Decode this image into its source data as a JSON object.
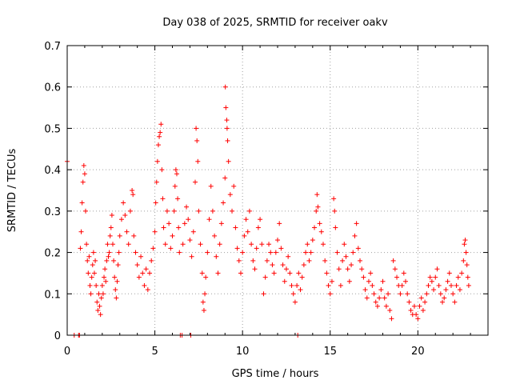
{
  "chart_data": {
    "type": "scatter",
    "title": "Day 038 of 2025, SRMTID for receiver oakv",
    "xlabel": "GPS time / hours",
    "ylabel": "SRMTID / TECUs",
    "xlim": [
      0,
      24
    ],
    "ylim": [
      0,
      0.7
    ],
    "x_ticks": [
      0,
      5,
      10,
      15,
      20
    ],
    "x_tick_labels": [
      "0",
      "5",
      "10",
      "15",
      "20"
    ],
    "y_ticks": [
      0,
      0.1,
      0.2,
      0.3,
      0.4,
      0.5,
      0.6,
      0.7
    ],
    "y_tick_labels": [
      "0",
      "0.1",
      "0.2",
      "0.3",
      "0.4",
      "0.5",
      "0.6",
      "0.7"
    ],
    "grid": true,
    "marker": "+",
    "marker_color": "#ff0000",
    "series": [
      {
        "name": "SRMTID",
        "points": [
          [
            0.0,
            0.42
          ],
          [
            0.4,
            0.0
          ],
          [
            0.65,
            0.0
          ],
          [
            0.7,
            0.0
          ],
          [
            0.75,
            0.21
          ],
          [
            0.8,
            0.25
          ],
          [
            0.85,
            0.32
          ],
          [
            0.9,
            0.37
          ],
          [
            0.95,
            0.41
          ],
          [
            1.0,
            0.39
          ],
          [
            1.05,
            0.3
          ],
          [
            1.1,
            0.22
          ],
          [
            1.15,
            0.18
          ],
          [
            1.2,
            0.15
          ],
          [
            1.25,
            0.19
          ],
          [
            1.3,
            0.12
          ],
          [
            1.35,
            0.1
          ],
          [
            1.4,
            0.14
          ],
          [
            1.45,
            0.17
          ],
          [
            1.5,
            0.2
          ],
          [
            1.55,
            0.15
          ],
          [
            1.6,
            0.18
          ],
          [
            1.65,
            0.12
          ],
          [
            1.7,
            0.08
          ],
          [
            1.75,
            0.06
          ],
          [
            1.8,
            0.1
          ],
          [
            1.85,
            0.07
          ],
          [
            1.9,
            0.05
          ],
          [
            1.95,
            0.09
          ],
          [
            2.0,
            0.12
          ],
          [
            2.05,
            0.1
          ],
          [
            2.1,
            0.14
          ],
          [
            2.15,
            0.16
          ],
          [
            2.2,
            0.13
          ],
          [
            2.25,
            0.18
          ],
          [
            2.3,
            0.22
          ],
          [
            2.35,
            0.19
          ],
          [
            2.4,
            0.2
          ],
          [
            2.45,
            0.24
          ],
          [
            2.5,
            0.26
          ],
          [
            2.55,
            0.29
          ],
          [
            2.6,
            0.22
          ],
          [
            2.65,
            0.18
          ],
          [
            2.7,
            0.14
          ],
          [
            2.75,
            0.11
          ],
          [
            2.8,
            0.09
          ],
          [
            2.85,
            0.13
          ],
          [
            2.9,
            0.17
          ],
          [
            2.95,
            0.2
          ],
          [
            3.0,
            0.24
          ],
          [
            3.1,
            0.28
          ],
          [
            3.2,
            0.32
          ],
          [
            3.3,
            0.29
          ],
          [
            3.4,
            0.25
          ],
          [
            3.5,
            0.22
          ],
          [
            3.6,
            0.3
          ],
          [
            3.7,
            0.35
          ],
          [
            3.75,
            0.34
          ],
          [
            3.8,
            0.24
          ],
          [
            3.9,
            0.2
          ],
          [
            4.0,
            0.17
          ],
          [
            4.1,
            0.14
          ],
          [
            4.2,
            0.19
          ],
          [
            4.3,
            0.15
          ],
          [
            4.4,
            0.12
          ],
          [
            4.5,
            0.16
          ],
          [
            4.6,
            0.11
          ],
          [
            4.7,
            0.15
          ],
          [
            4.8,
            0.18
          ],
          [
            4.9,
            0.21
          ],
          [
            5.0,
            0.25
          ],
          [
            5.05,
            0.32
          ],
          [
            5.1,
            0.37
          ],
          [
            5.15,
            0.42
          ],
          [
            5.2,
            0.46
          ],
          [
            5.25,
            0.48
          ],
          [
            5.3,
            0.49
          ],
          [
            5.35,
            0.51
          ],
          [
            5.4,
            0.4
          ],
          [
            5.45,
            0.33
          ],
          [
            5.5,
            0.26
          ],
          [
            5.6,
            0.22
          ],
          [
            5.7,
            0.3
          ],
          [
            5.8,
            0.27
          ],
          [
            5.9,
            0.21
          ],
          [
            6.0,
            0.24
          ],
          [
            6.1,
            0.3
          ],
          [
            6.15,
            0.36
          ],
          [
            6.2,
            0.4
          ],
          [
            6.25,
            0.39
          ],
          [
            6.3,
            0.33
          ],
          [
            6.35,
            0.26
          ],
          [
            6.4,
            0.2
          ],
          [
            6.45,
            0.0
          ],
          [
            6.55,
            0.0
          ],
          [
            6.6,
            0.22
          ],
          [
            6.7,
            0.27
          ],
          [
            6.8,
            0.31
          ],
          [
            6.9,
            0.28
          ],
          [
            7.0,
            0.23
          ],
          [
            7.05,
            0.0
          ],
          [
            7.1,
            0.19
          ],
          [
            7.2,
            0.25
          ],
          [
            7.3,
            0.37
          ],
          [
            7.35,
            0.5
          ],
          [
            7.4,
            0.47
          ],
          [
            7.45,
            0.42
          ],
          [
            7.5,
            0.3
          ],
          [
            7.6,
            0.22
          ],
          [
            7.7,
            0.15
          ],
          [
            7.75,
            0.08
          ],
          [
            7.8,
            0.06
          ],
          [
            7.85,
            0.1
          ],
          [
            7.9,
            0.14
          ],
          [
            8.0,
            0.2
          ],
          [
            8.1,
            0.28
          ],
          [
            8.2,
            0.36
          ],
          [
            8.3,
            0.3
          ],
          [
            8.4,
            0.24
          ],
          [
            8.5,
            0.19
          ],
          [
            8.6,
            0.15
          ],
          [
            8.7,
            0.22
          ],
          [
            8.8,
            0.27
          ],
          [
            8.9,
            0.32
          ],
          [
            9.0,
            0.38
          ],
          [
            9.02,
            0.6
          ],
          [
            9.05,
            0.55
          ],
          [
            9.1,
            0.52
          ],
          [
            9.12,
            0.5
          ],
          [
            9.15,
            0.47
          ],
          [
            9.2,
            0.42
          ],
          [
            9.3,
            0.34
          ],
          [
            9.4,
            0.3
          ],
          [
            9.5,
            0.36
          ],
          [
            9.6,
            0.26
          ],
          [
            9.7,
            0.21
          ],
          [
            9.8,
            0.18
          ],
          [
            9.9,
            0.15
          ],
          [
            10.0,
            0.2
          ],
          [
            10.1,
            0.24
          ],
          [
            10.2,
            0.28
          ],
          [
            10.3,
            0.25
          ],
          [
            10.4,
            0.3
          ],
          [
            10.5,
            0.22
          ],
          [
            10.6,
            0.18
          ],
          [
            10.7,
            0.16
          ],
          [
            10.8,
            0.21
          ],
          [
            10.9,
            0.26
          ],
          [
            11.0,
            0.28
          ],
          [
            11.1,
            0.22
          ],
          [
            11.2,
            0.1
          ],
          [
            11.3,
            0.14
          ],
          [
            11.4,
            0.18
          ],
          [
            11.5,
            0.22
          ],
          [
            11.6,
            0.2
          ],
          [
            11.7,
            0.17
          ],
          [
            11.8,
            0.15
          ],
          [
            11.9,
            0.2
          ],
          [
            12.0,
            0.23
          ],
          [
            12.1,
            0.27
          ],
          [
            12.2,
            0.21
          ],
          [
            12.3,
            0.17
          ],
          [
            12.4,
            0.13
          ],
          [
            12.5,
            0.16
          ],
          [
            12.6,
            0.19
          ],
          [
            12.7,
            0.15
          ],
          [
            12.8,
            0.12
          ],
          [
            12.9,
            0.1
          ],
          [
            13.0,
            0.08
          ],
          [
            13.1,
            0.12
          ],
          [
            13.15,
            0.0
          ],
          [
            13.2,
            0.15
          ],
          [
            13.3,
            0.11
          ],
          [
            13.4,
            0.14
          ],
          [
            13.5,
            0.17
          ],
          [
            13.6,
            0.2
          ],
          [
            13.7,
            0.22
          ],
          [
            13.8,
            0.18
          ],
          [
            13.9,
            0.2
          ],
          [
            14.0,
            0.23
          ],
          [
            14.1,
            0.26
          ],
          [
            14.2,
            0.3
          ],
          [
            14.25,
            0.34
          ],
          [
            14.3,
            0.31
          ],
          [
            14.4,
            0.27
          ],
          [
            14.5,
            0.25
          ],
          [
            14.6,
            0.22
          ],
          [
            14.7,
            0.18
          ],
          [
            14.8,
            0.15
          ],
          [
            14.9,
            0.12
          ],
          [
            15.0,
            0.1
          ],
          [
            15.1,
            0.13
          ],
          [
            15.2,
            0.33
          ],
          [
            15.25,
            0.3
          ],
          [
            15.3,
            0.26
          ],
          [
            15.4,
            0.2
          ],
          [
            15.5,
            0.16
          ],
          [
            15.6,
            0.12
          ],
          [
            15.7,
            0.18
          ],
          [
            15.8,
            0.22
          ],
          [
            15.9,
            0.19
          ],
          [
            16.0,
            0.16
          ],
          [
            16.1,
            0.13
          ],
          [
            16.2,
            0.17
          ],
          [
            16.3,
            0.2
          ],
          [
            16.4,
            0.24
          ],
          [
            16.5,
            0.27
          ],
          [
            16.6,
            0.21
          ],
          [
            16.7,
            0.18
          ],
          [
            16.8,
            0.16
          ],
          [
            16.9,
            0.14
          ],
          [
            17.0,
            0.11
          ],
          [
            17.1,
            0.09
          ],
          [
            17.2,
            0.13
          ],
          [
            17.3,
            0.15
          ],
          [
            17.4,
            0.12
          ],
          [
            17.5,
            0.1
          ],
          [
            17.6,
            0.08
          ],
          [
            17.7,
            0.07
          ],
          [
            17.8,
            0.09
          ],
          [
            17.9,
            0.11
          ],
          [
            18.0,
            0.13
          ],
          [
            18.1,
            0.09
          ],
          [
            18.2,
            0.07
          ],
          [
            18.3,
            0.1
          ],
          [
            18.4,
            0.06
          ],
          [
            18.5,
            0.04
          ],
          [
            18.6,
            0.18
          ],
          [
            18.7,
            0.16
          ],
          [
            18.8,
            0.14
          ],
          [
            18.9,
            0.12
          ],
          [
            19.0,
            0.1
          ],
          [
            19.1,
            0.12
          ],
          [
            19.2,
            0.15
          ],
          [
            19.3,
            0.13
          ],
          [
            19.4,
            0.1
          ],
          [
            19.5,
            0.08
          ],
          [
            19.6,
            0.06
          ],
          [
            19.7,
            0.05
          ],
          [
            19.8,
            0.07
          ],
          [
            19.9,
            0.05
          ],
          [
            20.0,
            0.04
          ],
          [
            20.1,
            0.07
          ],
          [
            20.2,
            0.09
          ],
          [
            20.3,
            0.06
          ],
          [
            20.4,
            0.08
          ],
          [
            20.5,
            0.1
          ],
          [
            20.6,
            0.12
          ],
          [
            20.7,
            0.14
          ],
          [
            20.8,
            0.13
          ],
          [
            20.9,
            0.11
          ],
          [
            21.0,
            0.14
          ],
          [
            21.1,
            0.16
          ],
          [
            21.2,
            0.12
          ],
          [
            21.3,
            0.1
          ],
          [
            21.4,
            0.08
          ],
          [
            21.5,
            0.09
          ],
          [
            21.6,
            0.11
          ],
          [
            21.7,
            0.13
          ],
          [
            21.8,
            0.15
          ],
          [
            21.9,
            0.12
          ],
          [
            22.0,
            0.1
          ],
          [
            22.1,
            0.08
          ],
          [
            22.2,
            0.12
          ],
          [
            22.3,
            0.14
          ],
          [
            22.4,
            0.11
          ],
          [
            22.5,
            0.15
          ],
          [
            22.6,
            0.18
          ],
          [
            22.65,
            0.22
          ],
          [
            22.7,
            0.23
          ],
          [
            22.75,
            0.2
          ],
          [
            22.8,
            0.17
          ],
          [
            22.85,
            0.14
          ],
          [
            22.9,
            0.12
          ]
        ]
      }
    ]
  }
}
